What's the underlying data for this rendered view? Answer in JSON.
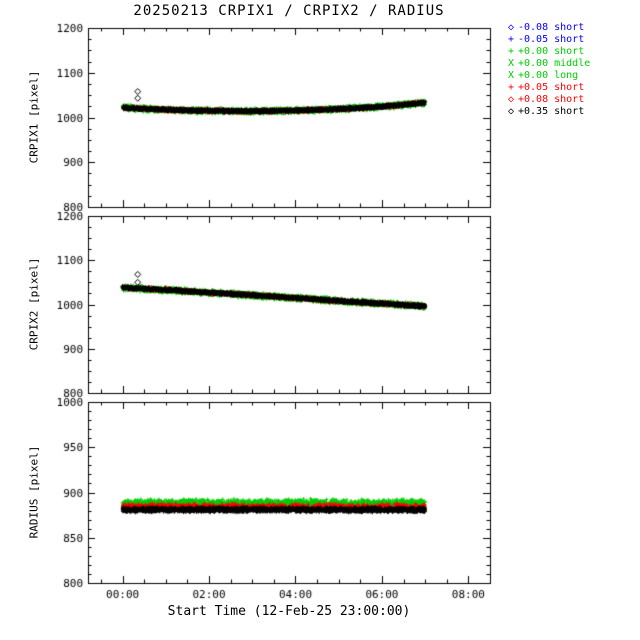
{
  "title": "20250213 CRPIX1 / CRPIX2 / RADIUS",
  "xlabel": "Start Time (12-Feb-25 23:00:00)",
  "colors": {
    "background": "#ffffff",
    "axis": "#000000",
    "blue": "#0000ff",
    "green": "#00cc00",
    "red": "#ff0000",
    "black": "#000000"
  },
  "legend": {
    "items": [
      {
        "symbol": "◇",
        "label": "-0.08 short",
        "color": "#0000ff"
      },
      {
        "symbol": "+",
        "label": "-0.05 short",
        "color": "#0000ff"
      },
      {
        "symbol": "+",
        "label": "+0.00 short",
        "color": "#00cc00"
      },
      {
        "symbol": "X",
        "label": "+0.00 middle",
        "color": "#00cc00"
      },
      {
        "symbol": "X",
        "label": "+0.00 long",
        "color": "#00cc00"
      },
      {
        "symbol": "+",
        "label": "+0.05 short",
        "color": "#ff0000"
      },
      {
        "symbol": "◇",
        "label": "+0.08 short",
        "color": "#ff0000"
      },
      {
        "symbol": "◇",
        "label": "+0.35 short",
        "color": "#000000"
      }
    ]
  },
  "chart_data": [
    {
      "type": "scatter",
      "ylabel": "CRPIX1 [pixel]",
      "ylim": [
        800,
        1200
      ],
      "yticks": [
        800,
        900,
        1000,
        1100,
        1200
      ],
      "yminor_step": 25,
      "xlim": [
        -0.8,
        8.5
      ],
      "xticks": [
        0,
        2,
        4,
        6,
        8
      ],
      "xtick_labels": [
        "00:00",
        "02:00",
        "04:00",
        "06:00",
        "08:00"
      ],
      "xminor_step": 0.5,
      "show_x_tick_labels": false,
      "x_hours": [
        0,
        0.5,
        1,
        1.5,
        2,
        2.5,
        3,
        3.5,
        4,
        4.5,
        5,
        5.5,
        6,
        6.5,
        7
      ],
      "series": [
        {
          "name": "+0.00 short/middle/long",
          "color": "#00cc00",
          "marker": "plus",
          "center": [
            1022,
            1019.5,
            1017.5,
            1016,
            1015,
            1014.5,
            1014,
            1014.5,
            1015.5,
            1017,
            1019,
            1021.5,
            1024.5,
            1028.5,
            1033
          ],
          "spread": 7,
          "points": 1800
        },
        {
          "name": "+0.05 / +0.08 short",
          "color": "#ff0000",
          "marker": "plus",
          "center": [
            1022,
            1019.5,
            1017.5,
            1016,
            1015,
            1014.5,
            1014,
            1014.5,
            1015.5,
            1017,
            1019,
            1021.5,
            1024.5,
            1028.5,
            1033
          ],
          "spread": 5,
          "points": 800
        },
        {
          "name": "+0.35 short",
          "color": "#000000",
          "marker": "plus",
          "center": [
            1022,
            1019.5,
            1017.5,
            1016,
            1015,
            1014.5,
            1014,
            1014.5,
            1015.5,
            1017,
            1019,
            1021.5,
            1024.5,
            1028.5,
            1033
          ],
          "spread": 4,
          "points": 2000
        }
      ],
      "outliers": [
        {
          "x_hours": 0.35,
          "y": 1058,
          "color": "#000000",
          "marker": "diamond"
        },
        {
          "x_hours": 0.35,
          "y": 1043,
          "color": "#000000",
          "marker": "diamond"
        }
      ]
    },
    {
      "type": "scatter",
      "ylabel": "CRPIX2 [pixel]",
      "ylim": [
        800,
        1200
      ],
      "yticks": [
        800,
        900,
        1000,
        1100,
        1200
      ],
      "yminor_step": 25,
      "xlim": [
        -0.8,
        8.5
      ],
      "xticks": [
        0,
        2,
        4,
        6,
        8
      ],
      "xtick_labels": [
        "00:00",
        "02:00",
        "04:00",
        "06:00",
        "08:00"
      ],
      "xminor_step": 0.5,
      "show_x_tick_labels": false,
      "x_hours": [
        0,
        0.5,
        1,
        1.5,
        2,
        2.5,
        3,
        3.5,
        4,
        4.5,
        5,
        5.5,
        6,
        6.5,
        7
      ],
      "series": [
        {
          "name": "+0.00 short/middle/long",
          "color": "#00cc00",
          "marker": "plus",
          "center": [
            1038,
            1035.5,
            1033,
            1030,
            1027,
            1024,
            1021,
            1018,
            1015,
            1011.5,
            1008,
            1005,
            1002,
            999,
            996
          ],
          "spread": 7,
          "points": 1800
        },
        {
          "name": "+0.05 / +0.08 short",
          "color": "#ff0000",
          "marker": "plus",
          "center": [
            1038,
            1035.5,
            1033,
            1030,
            1027,
            1024,
            1021,
            1018,
            1015,
            1011.5,
            1008,
            1005,
            1002,
            999,
            996
          ],
          "spread": 5,
          "points": 800
        },
        {
          "name": "+0.35 short",
          "color": "#000000",
          "marker": "plus",
          "center": [
            1038,
            1035.5,
            1033,
            1030,
            1027,
            1024,
            1021,
            1018,
            1015,
            1011.5,
            1008,
            1005,
            1002,
            999,
            996
          ],
          "spread": 4,
          "points": 2000
        }
      ],
      "outliers": [
        {
          "x_hours": 0.35,
          "y": 1068,
          "color": "#000000",
          "marker": "diamond"
        },
        {
          "x_hours": 0.35,
          "y": 1050,
          "color": "#000000",
          "marker": "diamond"
        }
      ]
    },
    {
      "type": "scatter",
      "ylabel": "RADIUS [pixel]",
      "ylim": [
        800,
        1000
      ],
      "yticks": [
        800,
        850,
        900,
        950,
        1000
      ],
      "yminor_step": 10,
      "xlim": [
        -0.8,
        8.5
      ],
      "xticks": [
        0,
        2,
        4,
        6,
        8
      ],
      "xtick_labels": [
        "00:00",
        "02:00",
        "04:00",
        "06:00",
        "08:00"
      ],
      "xminor_step": 0.5,
      "show_x_tick_labels": true,
      "x_hours": [
        0,
        0.5,
        1,
        1.5,
        2,
        2.5,
        3,
        3.5,
        4,
        4.5,
        5,
        5.5,
        6,
        6.5,
        7
      ],
      "series": [
        {
          "name": "+0.00 short/middle/long",
          "color": "#00cc00",
          "marker": "plus",
          "center": [
            887,
            887,
            887,
            887,
            887,
            887,
            887,
            887,
            887,
            887,
            887,
            887,
            887,
            887,
            887
          ],
          "spread": 6,
          "points": 1800
        },
        {
          "name": "+0.05 / +0.08 short",
          "color": "#ff0000",
          "marker": "plus",
          "center": [
            884,
            884,
            884,
            884,
            884,
            884,
            884,
            884,
            884,
            884,
            884,
            884,
            884,
            884,
            884
          ],
          "spread": 4,
          "points": 800
        },
        {
          "name": "+0.35 short",
          "color": "#000000",
          "marker": "plus",
          "center": [
            881,
            881,
            881,
            881,
            881,
            881,
            881,
            881,
            881,
            881,
            881,
            881,
            881,
            881,
            881
          ],
          "spread": 3,
          "points": 2000
        }
      ],
      "outliers": []
    }
  ]
}
